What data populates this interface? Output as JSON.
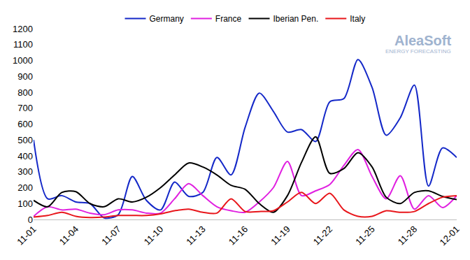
{
  "chart_data": {
    "type": "line",
    "categories": [
      "11-01",
      null,
      null,
      "11-04",
      null,
      null,
      "11-07",
      null,
      null,
      "11-10",
      null,
      null,
      "11-13",
      null,
      null,
      "11-16",
      null,
      null,
      "11-19",
      null,
      null,
      "11-22",
      null,
      null,
      "11-25",
      null,
      null,
      "11-28",
      null,
      null,
      "12-01"
    ],
    "series": [
      {
        "name": "Germany",
        "color": "#1428c8",
        "values": [
          500,
          130,
          150,
          110,
          100,
          10,
          30,
          270,
          120,
          60,
          235,
          145,
          170,
          390,
          280,
          580,
          795,
          680,
          550,
          565,
          490,
          740,
          760,
          1005,
          830,
          530,
          640,
          845,
          210,
          450,
          390
        ]
      },
      {
        "name": "France",
        "color": "#e020e0",
        "values": [
          20,
          80,
          60,
          65,
          40,
          30,
          60,
          60,
          40,
          40,
          130,
          225,
          150,
          80,
          55,
          45,
          110,
          200,
          365,
          150,
          180,
          220,
          340,
          440,
          270,
          130,
          275,
          65,
          150,
          75,
          150
        ]
      },
      {
        "name": "Iberian Pen.",
        "color": "#000000",
        "values": [
          120,
          80,
          170,
          175,
          100,
          80,
          130,
          110,
          140,
          200,
          280,
          355,
          330,
          280,
          215,
          190,
          100,
          45,
          150,
          360,
          520,
          290,
          320,
          420,
          330,
          140,
          100,
          170,
          180,
          145,
          125
        ]
      },
      {
        "name": "Italy",
        "color": "#e8161b",
        "values": [
          15,
          25,
          45,
          20,
          12,
          15,
          25,
          25,
          25,
          35,
          55,
          65,
          45,
          40,
          130,
          50,
          50,
          55,
          110,
          170,
          100,
          165,
          60,
          20,
          20,
          55,
          45,
          50,
          100,
          140,
          150
        ]
      }
    ],
    "ylim": [
      0,
      1200
    ],
    "yticks": [
      0,
      100,
      200,
      300,
      400,
      500,
      600,
      700,
      800,
      900,
      1000,
      1100,
      1200
    ],
    "grid": false,
    "legend": "top",
    "annotations": [
      "AleaSoft",
      "ENERGY FORECASTING"
    ]
  }
}
